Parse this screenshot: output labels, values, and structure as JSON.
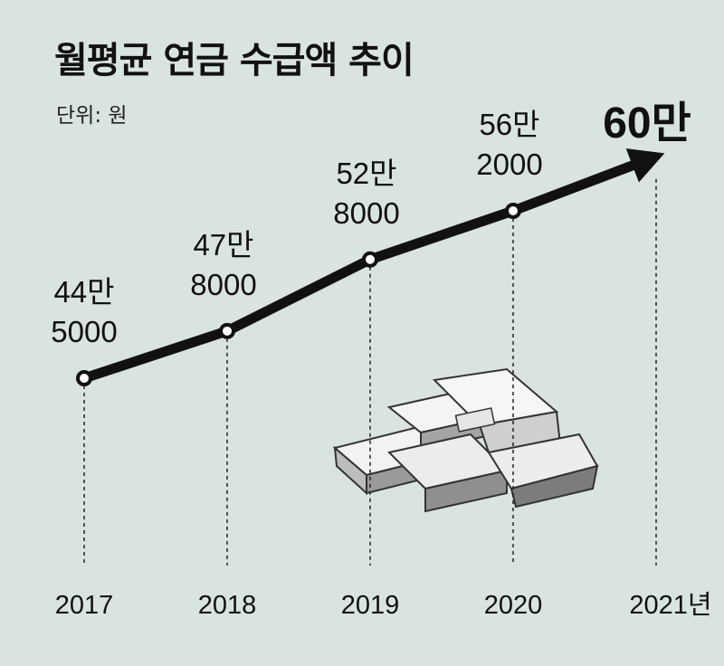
{
  "chart_data": {
    "type": "line",
    "title": "월평균 연금 수급액 추이",
    "unit_label": "단위: 원",
    "categories": [
      "2017",
      "2018",
      "2019",
      "2020",
      "2021년"
    ],
    "values": [
      445000,
      478000,
      528000,
      562000,
      600000
    ],
    "point_labels": [
      [
        "44만",
        "5000"
      ],
      [
        "47만",
        "8000"
      ],
      [
        "52만",
        "8000"
      ],
      [
        "56만",
        "2000"
      ],
      [
        "60만"
      ]
    ],
    "projected_last_point": true,
    "line_color": "#111111",
    "background": "#d9e3e2"
  }
}
